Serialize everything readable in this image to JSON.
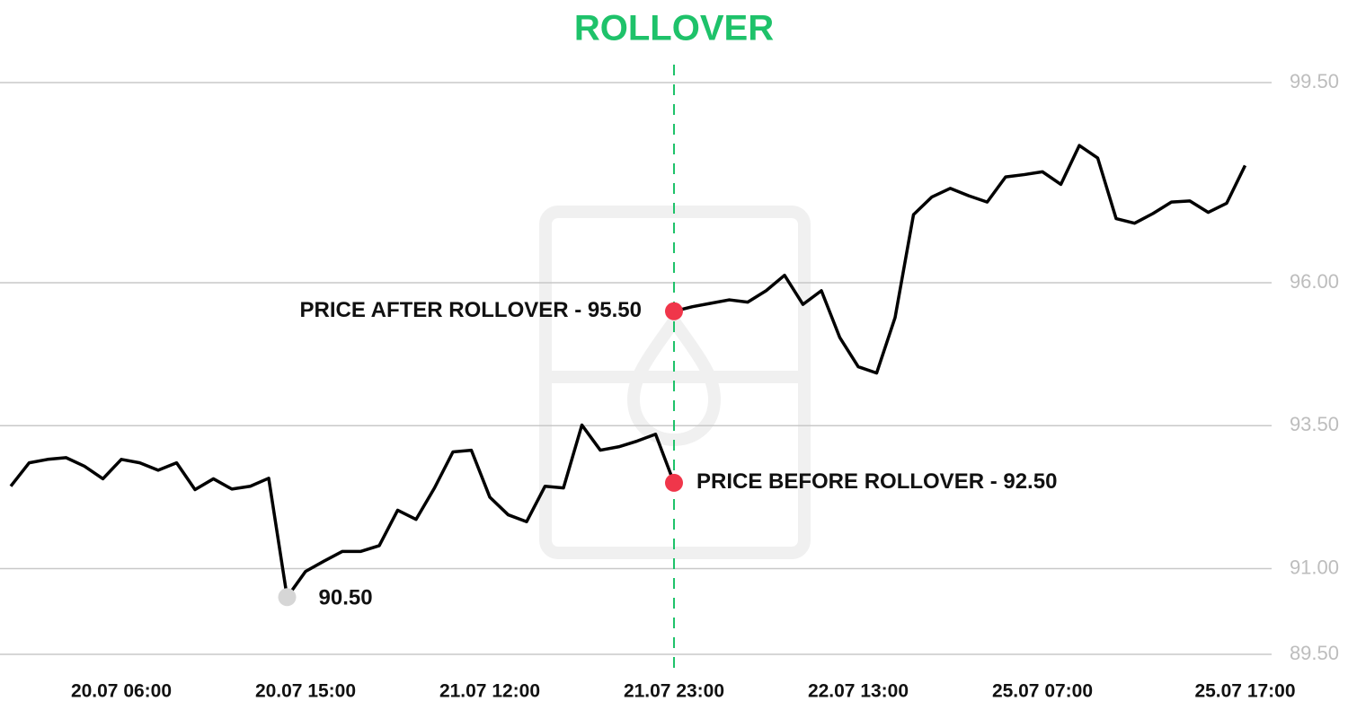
{
  "chart_data": {
    "type": "line",
    "title": "ROLLOVER",
    "title_color": "#1ec26a",
    "categories": [
      null,
      null,
      null,
      null,
      null,
      null,
      "20.07 06:00",
      null,
      null,
      null,
      null,
      null,
      null,
      null,
      null,
      null,
      "20.07 15:00",
      null,
      null,
      null,
      null,
      null,
      null,
      null,
      null,
      null,
      "21.07 12:00",
      null,
      null,
      null,
      null,
      null,
      null,
      null,
      null,
      null,
      "21.07 23:00",
      null,
      null,
      null,
      null,
      null,
      null,
      null,
      null,
      null,
      "22.07 13:00",
      null,
      null,
      null,
      null,
      null,
      null,
      null,
      null,
      null,
      "25.07 07:00",
      null,
      null,
      null,
      null,
      null,
      null,
      null,
      null,
      null,
      null,
      "25.07 17:00"
    ],
    "series": [
      {
        "color": "#000000",
        "values": [
          92.44,
          92.85,
          92.91,
          92.94,
          92.79,
          92.57,
          92.91,
          92.85,
          92.72,
          92.85,
          92.38,
          92.57,
          92.39,
          92.44,
          92.58,
          90.5,
          90.95,
          91.13,
          91.3,
          91.3,
          91.4,
          92.02,
          91.86,
          92.41,
          93.04,
          93.07,
          92.25,
          91.94,
          91.82,
          92.44,
          92.41,
          93.51,
          93.07,
          93.13,
          93.23,
          93.35,
          92.5,
          null,
          null,
          null,
          null,
          null,
          null,
          null,
          null,
          null,
          null,
          null,
          null,
          null,
          null,
          null,
          null,
          null,
          null,
          null,
          null,
          null,
          null,
          null,
          null,
          null,
          null,
          null,
          null,
          null,
          null,
          null
        ],
        "value_labels": [
          null,
          null,
          null,
          null,
          null,
          null,
          null,
          null,
          null,
          null,
          null,
          null,
          null,
          null,
          null,
          "90.50",
          null,
          null,
          null,
          null,
          null,
          null,
          null,
          null,
          null,
          null,
          null,
          null,
          null,
          null,
          null,
          null,
          null,
          null,
          null,
          null,
          "PRICE BEFORE ROLLOVER - 92.50",
          null,
          null,
          null,
          null,
          null,
          null,
          null,
          null,
          null,
          null,
          null,
          null,
          null,
          null,
          null,
          null,
          null,
          null,
          null,
          null,
          null,
          null,
          null,
          null,
          null,
          null,
          null,
          null,
          null,
          null,
          null
        ],
        "marker_colors": [
          null,
          null,
          null,
          null,
          null,
          null,
          null,
          null,
          null,
          null,
          null,
          null,
          null,
          null,
          null,
          "#d6d6d6",
          null,
          null,
          null,
          null,
          null,
          null,
          null,
          null,
          null,
          null,
          null,
          null,
          null,
          null,
          null,
          null,
          null,
          null,
          null,
          null,
          "#f0364a",
          null,
          null,
          null,
          null,
          null,
          null,
          null,
          null,
          null,
          null,
          null,
          null,
          null,
          null,
          null,
          null,
          null,
          null,
          null,
          null,
          null,
          null,
          null,
          null,
          null,
          null,
          null,
          null,
          null,
          null,
          null
        ]
      },
      {
        "color": "#000000",
        "values": [
          null,
          null,
          null,
          null,
          null,
          null,
          null,
          null,
          null,
          null,
          null,
          null,
          null,
          null,
          null,
          null,
          null,
          null,
          null,
          null,
          null,
          null,
          null,
          null,
          null,
          null,
          null,
          null,
          null,
          null,
          null,
          null,
          null,
          null,
          null,
          null,
          95.5,
          95.58,
          95.64,
          95.7,
          95.66,
          95.86,
          96.13,
          95.62,
          95.86,
          95.04,
          94.53,
          94.42,
          95.39,
          97.19,
          97.5,
          97.65,
          97.52,
          97.41,
          97.85,
          97.89,
          97.94,
          97.72,
          98.4,
          98.18,
          97.12,
          97.04,
          97.21,
          97.41,
          97.43,
          97.23,
          97.39,
          98.05
        ],
        "value_labels": [
          null,
          null,
          null,
          null,
          null,
          null,
          null,
          null,
          null,
          null,
          null,
          null,
          null,
          null,
          null,
          null,
          null,
          null,
          null,
          null,
          null,
          null,
          null,
          null,
          null,
          null,
          null,
          null,
          null,
          null,
          null,
          null,
          null,
          null,
          null,
          null,
          "PRICE AFTER ROLLOVER - 95.50",
          null,
          null,
          null,
          null,
          null,
          null,
          null,
          null,
          null,
          null,
          null,
          null,
          null,
          null,
          null,
          null,
          null,
          null,
          null,
          null,
          null,
          null,
          null,
          null,
          null,
          null,
          null,
          null,
          null,
          null,
          null
        ],
        "marker_colors": [
          null,
          null,
          null,
          null,
          null,
          null,
          null,
          null,
          null,
          null,
          null,
          null,
          null,
          null,
          null,
          null,
          null,
          null,
          null,
          null,
          null,
          null,
          null,
          null,
          null,
          null,
          null,
          null,
          null,
          null,
          null,
          null,
          null,
          null,
          null,
          null,
          "#f0364a",
          null,
          null,
          null,
          null,
          null,
          null,
          null,
          null,
          null,
          null,
          null,
          null,
          null,
          null,
          null,
          null,
          null,
          null,
          null,
          null,
          null,
          null,
          null,
          null,
          null,
          null,
          null,
          null,
          null,
          null,
          null
        ]
      }
    ],
    "ylim": [
      89.5,
      99.5
    ],
    "yticks": [
      {
        "value": 89.5,
        "label": "89.50"
      },
      {
        "value": 91,
        "label": "91.00"
      },
      {
        "value": 93.5,
        "label": "93.50"
      },
      {
        "value": 96,
        "label": "96.00"
      },
      {
        "value": 99.5,
        "label": "99.50"
      }
    ],
    "grid": true
  }
}
